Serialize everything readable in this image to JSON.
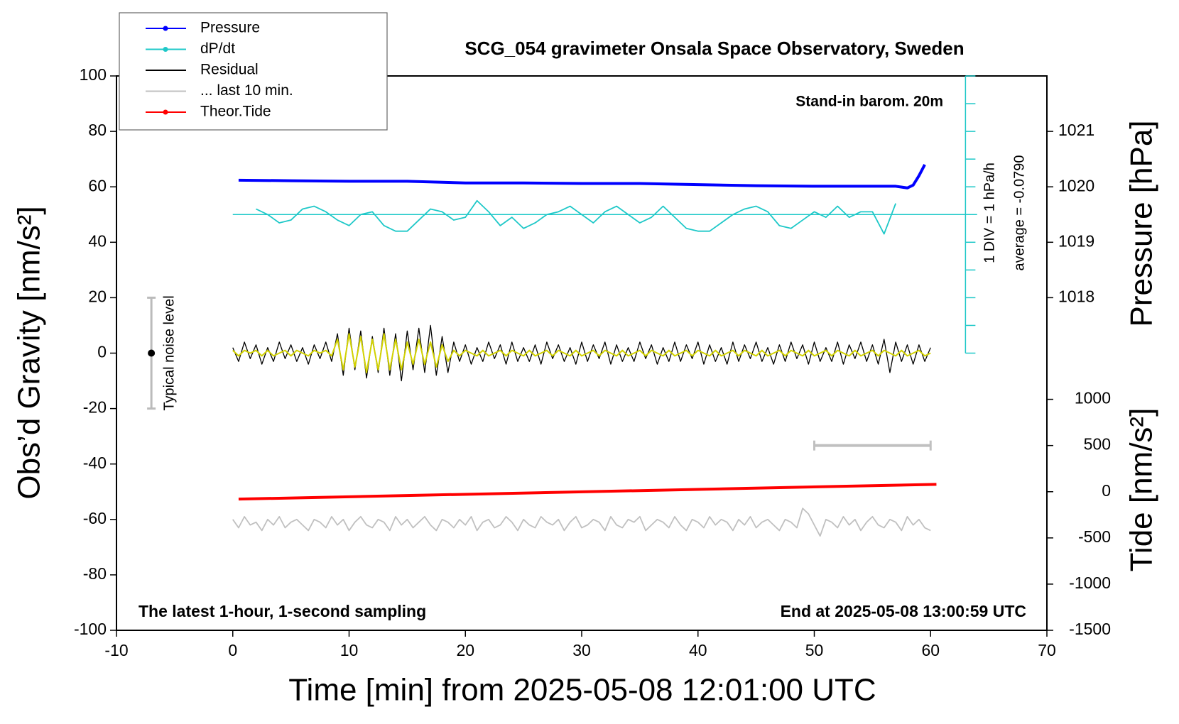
{
  "chart_data": {
    "type": "line",
    "title": "SCG_054 gravimeter Onsala Space Observatory, Sweden",
    "xlabel": "Time [min] from 2025-05-08 12:01:00 UTC",
    "ylabel": "Obs’d Gravity [nm/s²]",
    "y2label": "Pressure [hPa]",
    "y3label": "Tide [nm/s²]",
    "xlim": [
      -10,
      70
    ],
    "xticks": [
      -10,
      0,
      10,
      20,
      30,
      40,
      50,
      60,
      70
    ],
    "ylim": [
      -100,
      100
    ],
    "yticks": [
      -100,
      -80,
      -60,
      -40,
      -20,
      0,
      20,
      40,
      60,
      80,
      100
    ],
    "y2lim": [
      1012,
      1022
    ],
    "y2ticks": [
      1018,
      1019,
      1020,
      1021
    ],
    "y3lim": [
      -1500,
      4500
    ],
    "y3ticks": [
      -1500,
      -1000,
      -500,
      0,
      500,
      1000
    ],
    "x": [
      0,
      0.5,
      1,
      1.5,
      2,
      2.5,
      3,
      3.5,
      4,
      4.5,
      5,
      5.5,
      6,
      6.5,
      7,
      7.5,
      8,
      8.5,
      9,
      9.5,
      10,
      10.5,
      11,
      11.5,
      12,
      12.5,
      13,
      13.5,
      14,
      14.5,
      15,
      15.5,
      16,
      16.5,
      17,
      17.5,
      18,
      18.5,
      19,
      19.5,
      20,
      20.5,
      21,
      21.5,
      22,
      22.5,
      23,
      23.5,
      24,
      24.5,
      25,
      25.5,
      26,
      26.5,
      27,
      27.5,
      28,
      28.5,
      29,
      29.5,
      30,
      30.5,
      31,
      31.5,
      32,
      32.5,
      33,
      33.5,
      34,
      34.5,
      35,
      35.5,
      36,
      36.5,
      37,
      37.5,
      38,
      38.5,
      39,
      39.5,
      40,
      40.5,
      41,
      41.5,
      42,
      42.5,
      43,
      43.5,
      44,
      44.5,
      45,
      45.5,
      46,
      46.5,
      47,
      47.5,
      48,
      48.5,
      49,
      49.5,
      50,
      50.5,
      51,
      51.5,
      52,
      52.5,
      53,
      53.5,
      54,
      54.5,
      55,
      55.5,
      56,
      56.5,
      57,
      57.5,
      58,
      58.5,
      59,
      59.5,
      60
    ],
    "series": [
      {
        "name": "Pressure",
        "color": "#0000ff",
        "axis": "y2",
        "marker": true,
        "width": 4,
        "x": [
          0.5,
          5,
          10,
          15,
          20,
          25,
          30,
          35,
          40,
          45,
          50,
          55,
          57,
          58,
          58.5,
          59,
          59.5
        ],
        "values": [
          1020.12,
          1020.11,
          1020.1,
          1020.1,
          1020.07,
          1020.07,
          1020.06,
          1020.06,
          1020.04,
          1020.02,
          1020.01,
          1020.01,
          1020.01,
          1019.98,
          1020.03,
          1020.2,
          1020.4
        ]
      },
      {
        "name": "dP/dt",
        "color": "#1ec8c8",
        "marker": true,
        "width": 1.8,
        "x": [
          2,
          3,
          4,
          5,
          6,
          7,
          8,
          9,
          10,
          11,
          12,
          13,
          14,
          15,
          16,
          17,
          18,
          19,
          20,
          21,
          22,
          23,
          24,
          25,
          26,
          27,
          28,
          29,
          30,
          31,
          32,
          33,
          34,
          35,
          36,
          37,
          38,
          39,
          40,
          41,
          42,
          43,
          44,
          45,
          46,
          47,
          48,
          49,
          50,
          51,
          52,
          53,
          54,
          55,
          56,
          57
        ],
        "values": [
          52,
          50,
          47,
          48,
          52,
          53,
          51,
          48,
          46,
          50,
          51,
          46,
          44,
          44,
          48,
          52,
          51,
          48,
          49,
          55,
          51,
          46,
          49,
          45,
          47,
          50,
          51,
          53,
          50,
          47,
          51,
          53,
          50,
          47,
          49,
          53,
          49,
          45,
          44,
          44,
          47,
          50,
          52,
          53,
          51,
          46,
          45,
          48,
          51,
          49,
          53,
          49,
          51,
          51,
          43,
          54
        ]
      },
      {
        "name": "Residual",
        "color": "#000000",
        "width": 1.3,
        "values": [
          2,
          -3,
          4,
          -2,
          3,
          -4,
          2,
          -3,
          4,
          -2,
          3,
          -3,
          2,
          -4,
          3,
          -2,
          4,
          -3,
          7,
          -8,
          9,
          -6,
          8,
          -9,
          6,
          -7,
          9,
          -8,
          7,
          -10,
          8,
          -6,
          9,
          -7,
          10,
          -8,
          6,
          -7,
          4,
          -3,
          3,
          -4,
          2,
          -3,
          4,
          -2,
          3,
          -4,
          4,
          -3,
          2,
          -3,
          3,
          -4,
          4,
          -2,
          3,
          -3,
          2,
          -4,
          4,
          -3,
          3,
          -2,
          4,
          -4,
          3,
          -3,
          2,
          -3,
          4,
          -2,
          3,
          -4,
          2,
          -3,
          4,
          -3,
          3,
          -2,
          4,
          -4,
          3,
          -3,
          2,
          -4,
          4,
          -3,
          3,
          -2,
          4,
          -3,
          2,
          -4,
          3,
          -3,
          4,
          -2,
          3,
          -4,
          4,
          -3,
          2,
          -3,
          4,
          -4,
          3,
          -2,
          4,
          -3,
          3,
          -4,
          5,
          -7,
          4,
          -3,
          3,
          -4,
          3,
          -3,
          2
        ]
      },
      {
        "color": "#d2d200",
        "width": 2,
        "values": [
          1,
          -1,
          1,
          0,
          1,
          -1,
          1,
          -1,
          0,
          1,
          -1,
          1,
          0,
          -1,
          1,
          0,
          1,
          -1,
          5,
          -6,
          7,
          -5,
          6,
          -7,
          5,
          -6,
          7,
          -6,
          5,
          -6,
          4,
          -4,
          5,
          -4,
          4,
          -5,
          3,
          -3,
          1,
          -1,
          1,
          0,
          -1,
          1,
          -1,
          0,
          1,
          -1,
          1,
          0,
          -1,
          1,
          -1,
          0,
          1,
          -1,
          1,
          0,
          -1,
          1,
          -1,
          0,
          1,
          -1,
          1,
          0,
          -1,
          1,
          -1,
          0,
          1,
          -1,
          1,
          0,
          -1,
          1,
          -1,
          0,
          1,
          -1,
          1,
          0,
          -1,
          1,
          -1,
          0,
          1,
          -1,
          1,
          0,
          -1,
          1,
          -1,
          0,
          1,
          -1,
          1,
          0,
          -1,
          1,
          -1,
          0,
          1,
          -1,
          1,
          0,
          -1,
          1,
          -1,
          0,
          1,
          -1,
          1,
          0,
          -1,
          1,
          -1,
          0,
          1,
          -1,
          0
        ]
      },
      {
        "name": "... last 10 min.",
        "color": "#c0c0c0",
        "width": 1.8,
        "values": [
          -60,
          -63,
          -59,
          -62,
          -61,
          -64,
          -60,
          -62,
          -59,
          -63,
          -61,
          -60,
          -62,
          -64,
          -60,
          -61,
          -63,
          -59,
          -62,
          -60,
          -64,
          -61,
          -59,
          -62,
          -63,
          -60,
          -61,
          -64,
          -59,
          -62,
          -60,
          -63,
          -61,
          -59,
          -62,
          -64,
          -60,
          -61,
          -63,
          -60,
          -62,
          -59,
          -64,
          -61,
          -60,
          -63,
          -62,
          -59,
          -61,
          -64,
          -60,
          -62,
          -63,
          -59,
          -61,
          -62,
          -60,
          -64,
          -61,
          -59,
          -63,
          -62,
          -60,
          -61,
          -64,
          -59,
          -62,
          -63,
          -60,
          -61,
          -59,
          -64,
          -62,
          -60,
          -61,
          -63,
          -59,
          -62,
          -64,
          -60,
          -61,
          -63,
          -59,
          -62,
          -60,
          -61,
          -64,
          -60,
          -62,
          -59,
          -63,
          -61,
          -60,
          -62,
          -64,
          -60,
          -61,
          -63,
          -56,
          -58,
          -62,
          -66,
          -60,
          -61,
          -63,
          -59,
          -62,
          -60,
          -64,
          -61,
          -59,
          -62,
          -63,
          -60,
          -61,
          -64,
          -59,
          -62,
          -60,
          -63,
          -64
        ]
      },
      {
        "name": "Theor.Tide",
        "color": "#ff0000",
        "axis": "y3",
        "marker": true,
        "width": 4,
        "x": [
          0.5,
          60.5
        ],
        "values": [
          -80,
          80
        ]
      }
    ],
    "dpdt_axis": {
      "x": 63,
      "ticks": [
        0,
        10,
        20,
        30,
        40,
        50,
        60,
        70,
        80,
        90,
        100
      ],
      "baseline": 50,
      "baseline_x": [
        0,
        64
      ]
    },
    "window_bar": {
      "x": [
        50,
        60
      ],
      "y": 500,
      "color": "#c0c0c0"
    },
    "noise_level": {
      "label": "Typical noise level",
      "x": -7,
      "range": [
        -20,
        20
      ],
      "center": 0
    },
    "annotations": {
      "barometer": "Stand-in barom. 20m",
      "scale": "1 DIV = 1 hPa/h",
      "average": "average = -0.0790",
      "left_note": "The latest 1-hour, 1-second sampling",
      "right_note": "End at 2025-05-08 13:00:59 UTC"
    }
  }
}
